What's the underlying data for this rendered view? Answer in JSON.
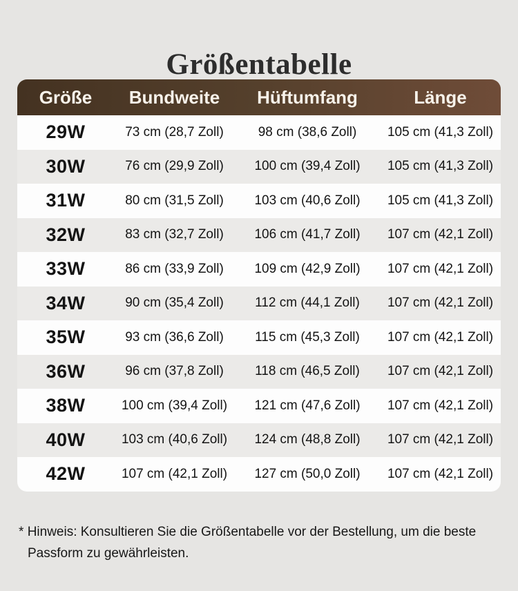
{
  "page": {
    "title": "Größentabelle",
    "footnote_marker": "*",
    "footnote_text": "Hinweis: Konsultieren Sie die Größentabelle vor der Bestellung, um die beste Passform zu gewährleisten."
  },
  "chart_data": {
    "type": "table",
    "title": "Größentabelle",
    "columns": [
      "Größe",
      "Bundweite",
      "Hüftumfang",
      "Länge"
    ],
    "rows": [
      [
        "29W",
        "73 cm (28,7 Zoll)",
        "98 cm (38,6 Zoll)",
        "105 cm (41,3 Zoll)"
      ],
      [
        "30W",
        "76 cm (29,9 Zoll)",
        "100 cm (39,4 Zoll)",
        "105 cm (41,3 Zoll)"
      ],
      [
        "31W",
        "80 cm (31,5 Zoll)",
        "103 cm (40,6 Zoll)",
        "105 cm (41,3 Zoll)"
      ],
      [
        "32W",
        "83 cm (32,7 Zoll)",
        "106 cm (41,7 Zoll)",
        "107 cm (42,1 Zoll)"
      ],
      [
        "33W",
        "86 cm (33,9 Zoll)",
        "109 cm (42,9 Zoll)",
        "107 cm (42,1 Zoll)"
      ],
      [
        "34W",
        "90 cm (35,4 Zoll)",
        "112 cm (44,1 Zoll)",
        "107 cm (42,1 Zoll)"
      ],
      [
        "35W",
        "93 cm (36,6 Zoll)",
        "115 cm (45,3 Zoll)",
        "107 cm (42,1 Zoll)"
      ],
      [
        "36W",
        "96 cm (37,8 Zoll)",
        "118 cm (46,5 Zoll)",
        "107 cm (42,1 Zoll)"
      ],
      [
        "38W",
        "100 cm (39,4 Zoll)",
        "121 cm (47,6 Zoll)",
        "107 cm (42,1 Zoll)"
      ],
      [
        "40W",
        "103 cm (40,6 Zoll)",
        "124 cm (48,8 Zoll)",
        "107 cm (42,1 Zoll)"
      ],
      [
        "42W",
        "107 cm (42,1 Zoll)",
        "127 cm (50,0 Zoll)",
        "107 cm (42,1 Zoll)"
      ]
    ]
  },
  "colors": {
    "page_background": "#e6e5e3",
    "row_white": "#fdfdfd",
    "row_gray": "#ebeae8",
    "header_gradient_left": "#443221",
    "header_gradient_right": "#6f4c38",
    "header_text": "#f7f2ea",
    "body_text": "#141414",
    "title_text": "#2d2d2d"
  }
}
